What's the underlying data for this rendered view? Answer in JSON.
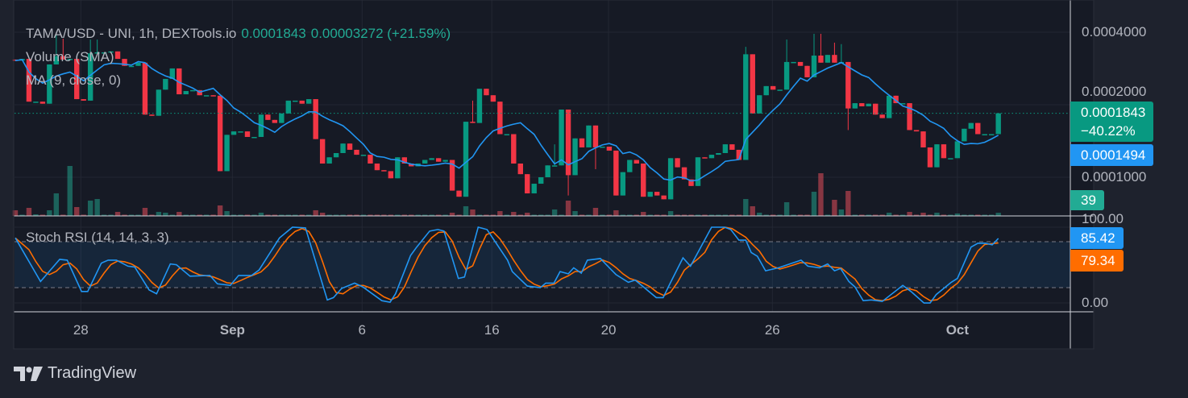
{
  "legend": {
    "symbol": "TAMA/USD - UNI, 1h, DEXTools.io",
    "last": "0.0001843",
    "change": "0.00003272 (+21.59%)",
    "volume": "Volume (SMA)",
    "ma": "MA (9, close, 0)",
    "stoch": "Stoch RSI (14, 14, 3, 3)"
  },
  "badges": {
    "price": "0.0001843",
    "price_change": "−40.22%",
    "ma": "0.0001494",
    "volume": "39",
    "stoch_k": "85.42",
    "stoch_d": "79.34"
  },
  "price_axis": [
    "0.0004000",
    "0.0002000",
    "0.0001000"
  ],
  "stoch_axis": [
    "100.00",
    "0.00"
  ],
  "brand": "TradingView",
  "colors": {
    "up": "#089981",
    "down": "#f23645",
    "ma": "#2196f3",
    "k": "#2196f3",
    "d": "#ff6d00",
    "bg": "#161a25"
  },
  "chart_data": {
    "type": "candlestick",
    "title": "TAMA/USD - UNI, 1h, DEXTools.io",
    "price_unit": 0.0001,
    "price_scale": "log",
    "ylim": [
      8e-05,
      0.00042
    ],
    "closes": [
      3.05,
      3.1,
      2.06,
      2.06,
      2.02,
      2.94,
      3.18,
      3.08,
      3.1,
      2.11,
      2.08,
      3.27,
      3.3,
      3.3,
      3.33,
      3.1,
      2.9,
      2.9,
      2.99,
      1.82,
      1.8,
      2.31,
      2.56,
      2.83,
      2.21,
      2.28,
      2.3,
      2.19,
      2.19,
      2.18,
      1.06,
      1.5,
      1.55,
      1.55,
      1.47,
      1.47,
      1.82,
      1.73,
      1.68,
      1.84,
      2.08,
      2.08,
      2.02,
      2.11,
      1.44,
      1.14,
      1.21,
      1.26,
      1.38,
      1.3,
      1.24,
      1.24,
      1.14,
      1.07,
      1.06,
      0.99,
      1.21,
      1.14,
      1.11,
      1.14,
      1.18,
      1.2,
      1.16,
      1.18,
      0.88,
      0.83,
      1.7,
      1.68,
      2.33,
      2.19,
      2.06,
      1.51,
      1.51,
      1.14,
      1.03,
      0.857,
      0.94,
      1.0,
      1.12,
      1.12,
      1.91,
      1.02,
      1.45,
      1.33,
      1.64,
      1.33,
      1.34,
      1.29,
      0.84,
      1.05,
      1.18,
      1.14,
      0.83,
      0.87,
      0.84,
      0.81,
      1.2,
      1.1,
      0.98,
      0.92,
      1.21,
      1.2,
      1.24,
      1.26,
      1.37,
      1.3,
      1.18,
      3.24,
      1.84,
      2.19,
      2.39,
      2.31,
      2.31,
      3.01,
      3.01,
      2.9,
      2.6,
      3.2,
      2.99,
      3.22,
      2.99,
      3.01,
      1.93,
      2.03,
      1.97,
      2.02,
      1.82,
      1.76,
      2.18,
      2.03,
      2.03,
      1.57,
      1.55,
      1.33,
      1.1,
      1.37,
      1.2,
      1.2,
      1.41,
      1.59,
      1.68,
      1.51,
      1.51,
      1.51,
      1.843
    ],
    "first_open": 3.08,
    "highs": {
      "6": 3.9,
      "7": 3.76,
      "11": 3.73,
      "12": 3.73,
      "67": 2.08,
      "79": 1.37,
      "107": 3.48,
      "113": 3.73,
      "117": 3.94,
      "118": 3.94,
      "120": 3.62,
      "121": 3.57
    },
    "lows": {
      "81": 0.84,
      "85": 1.08,
      "122": 1.57
    },
    "volume": [
      70,
      15,
      100,
      20,
      15,
      70,
      280,
      15,
      620,
      110,
      15,
      190,
      210,
      15,
      15,
      50,
      15,
      15,
      15,
      100,
      15,
      50,
      40,
      15,
      50,
      15,
      15,
      15,
      15,
      15,
      130,
      60,
      15,
      15,
      15,
      15,
      40,
      15,
      15,
      15,
      15,
      15,
      15,
      15,
      70,
      40,
      15,
      15,
      15,
      15,
      15,
      15,
      15,
      15,
      15,
      15,
      15,
      15,
      15,
      15,
      15,
      15,
      15,
      15,
      40,
      15,
      120,
      80,
      15,
      15,
      15,
      60,
      15,
      50,
      15,
      40,
      15,
      15,
      15,
      80,
      15,
      190,
      60,
      15,
      15,
      100,
      15,
      15,
      70,
      15,
      15,
      15,
      50,
      15,
      15,
      15,
      60,
      15,
      15,
      15,
      15,
      15,
      15,
      15,
      15,
      15,
      15,
      210,
      120,
      40,
      15,
      15,
      15,
      170,
      15,
      15,
      15,
      300,
      530,
      15,
      200,
      80,
      310,
      15,
      15,
      15,
      15,
      15,
      40,
      15,
      15,
      50,
      15,
      40,
      15,
      40,
      15,
      15,
      30,
      15,
      15,
      15,
      15,
      15,
      39
    ],
    "ma_period": 9,
    "stoch_k_points": [
      [
        0,
        86
      ],
      [
        3.7,
        29
      ],
      [
        6.5,
        58
      ],
      [
        7.6,
        57
      ],
      [
        9.7,
        16
      ],
      [
        10.6,
        16
      ],
      [
        12.6,
        53
      ],
      [
        13.6,
        57
      ],
      [
        14.8,
        57
      ],
      [
        16.5,
        49
      ],
      [
        17.5,
        48
      ],
      [
        19.6,
        18
      ],
      [
        20.7,
        13
      ],
      [
        22.7,
        52
      ],
      [
        23.6,
        51
      ],
      [
        25.6,
        36
      ],
      [
        28.5,
        37
      ],
      [
        29.6,
        26
      ],
      [
        31.5,
        24
      ],
      [
        32.7,
        37
      ],
      [
        34.6,
        37
      ],
      [
        35.7,
        44
      ],
      [
        38.7,
        86
      ],
      [
        40.6,
        100
      ],
      [
        42.5,
        99
      ],
      [
        45.7,
        5
      ],
      [
        46.6,
        8
      ],
      [
        47.8,
        20
      ],
      [
        49.7,
        27
      ],
      [
        50.9,
        22
      ],
      [
        53.7,
        4
      ],
      [
        54.9,
        2
      ],
      [
        55.7,
        13
      ],
      [
        57.9,
        63
      ],
      [
        58.8,
        74
      ],
      [
        60.7,
        95
      ],
      [
        61.9,
        97
      ],
      [
        62.8,
        95
      ],
      [
        64.9,
        33
      ],
      [
        65.8,
        35
      ],
      [
        67.8,
        100
      ],
      [
        69.1,
        97
      ],
      [
        72.1,
        57
      ],
      [
        72.8,
        42
      ],
      [
        75,
        23
      ],
      [
        76.9,
        21
      ],
      [
        77.7,
        27
      ],
      [
        78.9,
        27
      ],
      [
        79.8,
        42
      ],
      [
        81,
        39
      ],
      [
        81.8,
        47
      ],
      [
        82.9,
        40
      ],
      [
        83.8,
        57
      ],
      [
        85.7,
        59
      ],
      [
        88,
        38
      ],
      [
        89.8,
        28
      ],
      [
        90.8,
        31
      ],
      [
        93.9,
        8
      ],
      [
        94.9,
        8
      ],
      [
        96,
        28
      ],
      [
        97.8,
        60
      ],
      [
        98.9,
        49
      ],
      [
        102,
        100
      ],
      [
        103.9,
        100
      ],
      [
        104.8,
        97
      ],
      [
        106,
        83
      ],
      [
        107,
        83
      ],
      [
        107.8,
        67
      ],
      [
        108.7,
        62
      ],
      [
        109.9,
        43
      ],
      [
        111.8,
        47
      ],
      [
        115.1,
        57
      ],
      [
        116.1,
        49
      ],
      [
        117.8,
        47
      ],
      [
        119,
        52
      ],
      [
        120,
        43
      ],
      [
        120.9,
        46
      ],
      [
        122.1,
        29
      ],
      [
        123,
        22
      ],
      [
        124.2,
        4
      ],
      [
        125.4,
        5
      ],
      [
        127,
        3
      ],
      [
        130,
        24
      ],
      [
        131.2,
        16
      ],
      [
        133.1,
        1
      ],
      [
        134,
        1
      ],
      [
        134.9,
        12
      ],
      [
        137.1,
        28
      ],
      [
        138,
        33
      ],
      [
        140,
        74
      ],
      [
        141,
        79
      ],
      [
        142.1,
        79
      ],
      [
        143.1,
        77
      ],
      [
        144,
        85.42
      ]
    ],
    "stoch_levels": [
      80,
      20
    ],
    "stoch_ylim": [
      0,
      100
    ],
    "x_ticks": [
      {
        "label": "28",
        "at": 9.6,
        "bold": false
      },
      {
        "label": "Sep",
        "at": 31.8,
        "bold": true
      },
      {
        "label": "6",
        "at": 50.8,
        "bold": false
      },
      {
        "label": "16",
        "at": 69.8,
        "bold": false
      },
      {
        "label": "20",
        "at": 86.9,
        "bold": false
      },
      {
        "label": "26",
        "at": 110.9,
        "bold": false
      },
      {
        "label": "Oct",
        "at": 138,
        "bold": true
      }
    ]
  }
}
